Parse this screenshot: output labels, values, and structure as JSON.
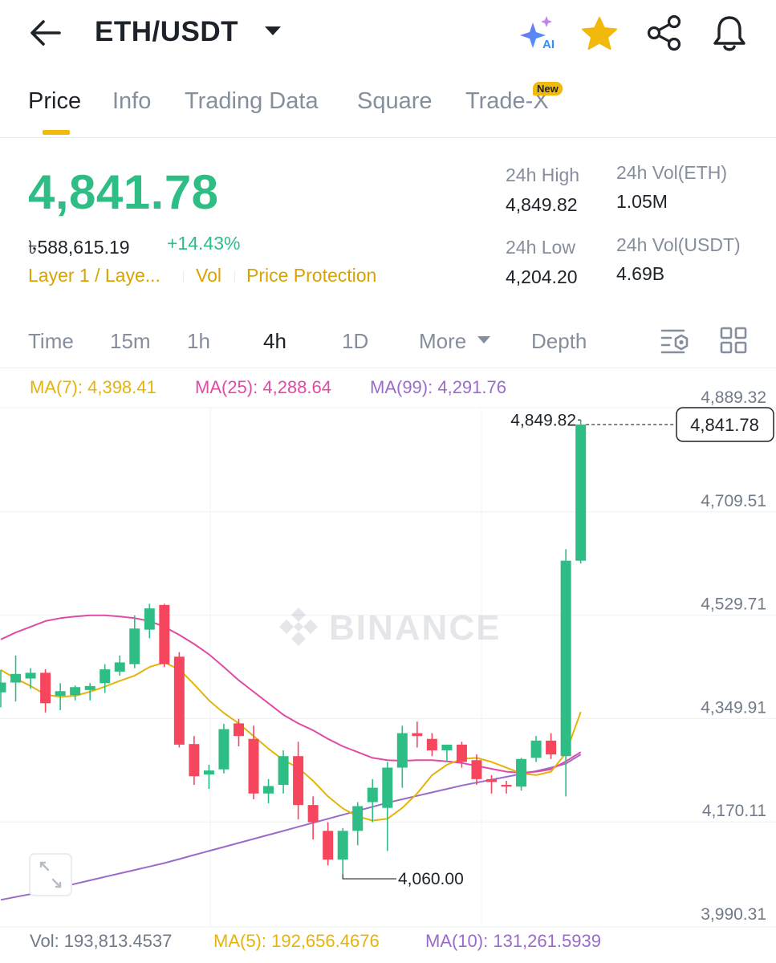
{
  "header": {
    "pair": "ETH/USDT",
    "icons": [
      "back-arrow-icon",
      "ai-sparkle-icon",
      "star-icon",
      "share-icon",
      "bell-icon"
    ],
    "ai_label": "AI"
  },
  "tabs": [
    {
      "label": "Price",
      "active": true
    },
    {
      "label": "Info",
      "active": false
    },
    {
      "label": "Trading Data",
      "active": false
    },
    {
      "label": "Square",
      "active": false
    },
    {
      "label": "Trade-X",
      "active": false,
      "badge": "New"
    }
  ],
  "ticker": {
    "last_price": "4,841.78",
    "fiat_price": "৳588,615.19",
    "change_pct": "+14.43%",
    "tags": [
      "Layer 1 / Laye...",
      "Vol",
      "Price Protection"
    ],
    "stats": {
      "high_label": "24h High",
      "high_value": "4,849.82",
      "low_label": "24h Low",
      "low_value": "4,204.20",
      "vol_base_label": "24h Vol(ETH)",
      "vol_base_value": "1.05M",
      "vol_quote_label": "24h Vol(USDT)",
      "vol_quote_value": "4.69B"
    }
  },
  "intervals": [
    {
      "label": "Time",
      "active": false
    },
    {
      "label": "15m",
      "active": false
    },
    {
      "label": "1h",
      "active": false
    },
    {
      "label": "4h",
      "active": true
    },
    {
      "label": "1D",
      "active": false
    },
    {
      "label": "More",
      "active": false
    },
    {
      "label": "Depth",
      "active": false
    }
  ],
  "ma_legend": {
    "ma7": "MA(7): 4,398.41",
    "ma25": "MA(25): 4,288.64",
    "ma99": "MA(99): 4,291.76"
  },
  "volume_legend": {
    "vol": "Vol: 193,813.4537",
    "ma5": "MA(5): 192,656.4676",
    "ma10": "MA(10): 131,261.5939"
  },
  "colors": {
    "up": "#2ebd85",
    "down": "#f6465d",
    "accent": "#f0b90b",
    "ma7": "#e5b40c",
    "ma25": "#e04ba4",
    "ma99": "#9a6bc9",
    "tag": "#d9a300"
  },
  "watermark": "BINANCE",
  "chart_data": {
    "type": "candlestick",
    "interval": "4h",
    "y_ticks": [
      "4,889.32",
      "4,709.51",
      "4,529.71",
      "4,349.91",
      "4,170.11",
      "3,990.31"
    ],
    "ylim": [
      3990.31,
      4889.32
    ],
    "last_price_label": "4,841.78",
    "high_marker": "4,849.82",
    "low_marker": "4,060.00",
    "candles": [
      {
        "o": 4376,
        "h": 4415,
        "l": 4350,
        "c": 4393
      },
      {
        "o": 4393,
        "h": 4440,
        "l": 4360,
        "c": 4408
      },
      {
        "o": 4400,
        "h": 4418,
        "l": 4382,
        "c": 4410
      },
      {
        "o": 4410,
        "h": 4416,
        "l": 4341,
        "c": 4357
      },
      {
        "o": 4370,
        "h": 4392,
        "l": 4345,
        "c": 4378
      },
      {
        "o": 4371,
        "h": 4388,
        "l": 4362,
        "c": 4385
      },
      {
        "o": 4380,
        "h": 4392,
        "l": 4362,
        "c": 4387
      },
      {
        "o": 4392,
        "h": 4425,
        "l": 4375,
        "c": 4416
      },
      {
        "o": 4412,
        "h": 4440,
        "l": 4405,
        "c": 4428
      },
      {
        "o": 4425,
        "h": 4510,
        "l": 4418,
        "c": 4487
      },
      {
        "o": 4485,
        "h": 4530,
        "l": 4470,
        "c": 4522
      },
      {
        "o": 4528,
        "h": 4530,
        "l": 4420,
        "c": 4425
      },
      {
        "o": 4438,
        "h": 4446,
        "l": 4280,
        "c": 4285
      },
      {
        "o": 4286,
        "h": 4300,
        "l": 4215,
        "c": 4230
      },
      {
        "o": 4233,
        "h": 4250,
        "l": 4208,
        "c": 4240
      },
      {
        "o": 4242,
        "h": 4321,
        "l": 4235,
        "c": 4312
      },
      {
        "o": 4322,
        "h": 4330,
        "l": 4282,
        "c": 4300
      },
      {
        "o": 4295,
        "h": 4318,
        "l": 4190,
        "c": 4200
      },
      {
        "o": 4200,
        "h": 4225,
        "l": 4183,
        "c": 4213
      },
      {
        "o": 4215,
        "h": 4275,
        "l": 4200,
        "c": 4265
      },
      {
        "o": 4265,
        "h": 4290,
        "l": 4155,
        "c": 4180
      },
      {
        "o": 4180,
        "h": 4195,
        "l": 4120,
        "c": 4150
      },
      {
        "o": 4135,
        "h": 4150,
        "l": 4075,
        "c": 4085
      },
      {
        "o": 4085,
        "h": 4140,
        "l": 4060,
        "c": 4135
      },
      {
        "o": 4135,
        "h": 4185,
        "l": 4110,
        "c": 4178
      },
      {
        "o": 4185,
        "h": 4225,
        "l": 4150,
        "c": 4210
      },
      {
        "o": 4175,
        "h": 4255,
        "l": 4100,
        "c": 4245
      },
      {
        "o": 4245,
        "h": 4318,
        "l": 4210,
        "c": 4305
      },
      {
        "o": 4305,
        "h": 4325,
        "l": 4280,
        "c": 4300
      },
      {
        "o": 4295,
        "h": 4305,
        "l": 4265,
        "c": 4275
      },
      {
        "o": 4275,
        "h": 4285,
        "l": 4255,
        "c": 4285
      },
      {
        "o": 4285,
        "h": 4290,
        "l": 4245,
        "c": 4255
      },
      {
        "o": 4258,
        "h": 4268,
        "l": 4215,
        "c": 4225
      },
      {
        "o": 4225,
        "h": 4232,
        "l": 4200,
        "c": 4220
      },
      {
        "o": 4215,
        "h": 4222,
        "l": 4200,
        "c": 4212
      },
      {
        "o": 4212,
        "h": 4262,
        "l": 4205,
        "c": 4260
      },
      {
        "o": 4262,
        "h": 4300,
        "l": 4255,
        "c": 4292
      },
      {
        "o": 4292,
        "h": 4305,
        "l": 4260,
        "c": 4268
      },
      {
        "o": 4265,
        "h": 4625,
        "l": 4195,
        "c": 4605
      },
      {
        "o": 4605,
        "h": 4849.82,
        "l": 4600,
        "c": 4841.78
      }
    ],
    "ma7": [
      4415,
      4400,
      4387,
      4372,
      4368,
      4370,
      4377,
      4386,
      4396,
      4405,
      4420,
      4428,
      4416,
      4390,
      4362,
      4340,
      4322,
      4300,
      4278,
      4258,
      4245,
      4222,
      4195,
      4174,
      4160,
      4153,
      4156,
      4175,
      4200,
      4232,
      4250,
      4260,
      4262,
      4255,
      4245,
      4235,
      4232,
      4238,
      4270,
      4342
    ],
    "ma25": [
      4468,
      4480,
      4490,
      4500,
      4505,
      4508,
      4510,
      4510,
      4508,
      4505,
      4500,
      4490,
      4476,
      4460,
      4442,
      4420,
      4397,
      4377,
      4357,
      4337,
      4322,
      4310,
      4295,
      4282,
      4272,
      4262,
      4258,
      4257,
      4258,
      4258,
      4256,
      4253,
      4248,
      4243,
      4238,
      4236,
      4238,
      4242,
      4256,
      4272
    ],
    "ma99": [
      4015,
      4020,
      4025,
      4031,
      4037,
      4043,
      4049,
      4055,
      4061,
      4067,
      4073,
      4079,
      4086,
      4093,
      4100,
      4107,
      4114,
      4121,
      4128,
      4135,
      4142,
      4149,
      4156,
      4163,
      4170,
      4177,
      4184,
      4190,
      4196,
      4202,
      4208,
      4214,
      4219,
      4224,
      4229,
      4234,
      4239,
      4245,
      4252,
      4268
    ]
  }
}
